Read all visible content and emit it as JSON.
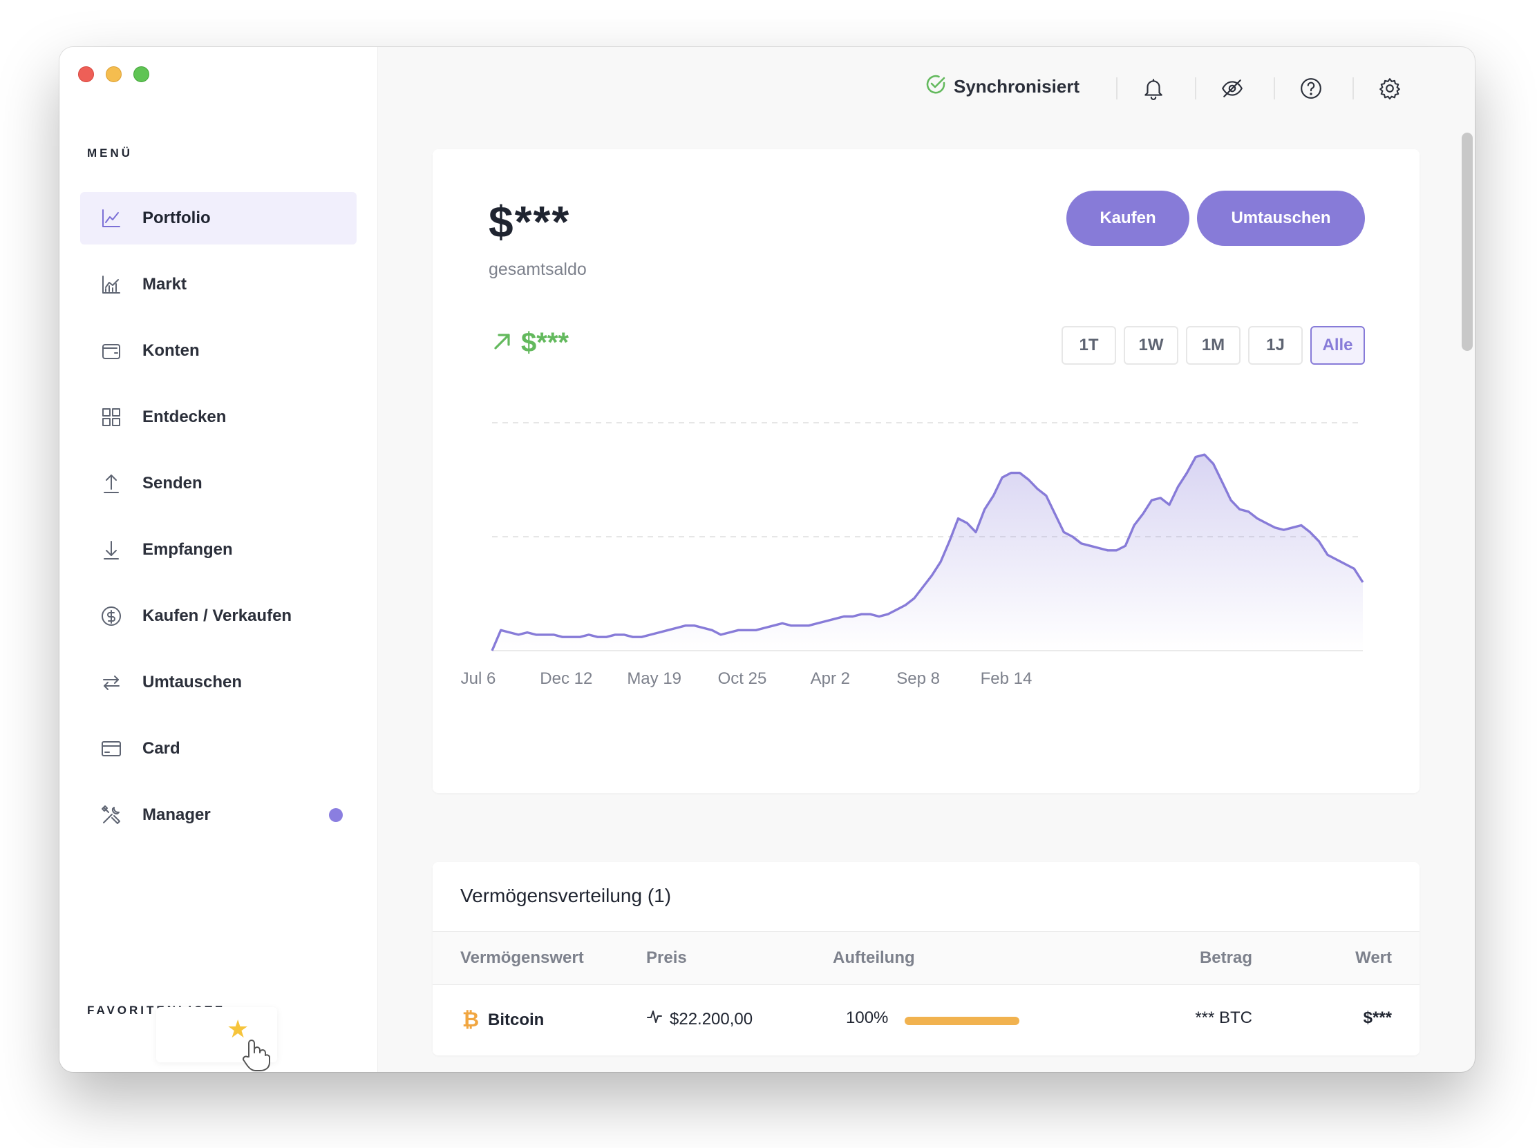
{
  "sidebar": {
    "menu_title": "MENÜ",
    "items": [
      {
        "label": "Portfolio",
        "icon": "chart-line-icon",
        "active": true
      },
      {
        "label": "Markt",
        "icon": "market-chart-icon"
      },
      {
        "label": "Konten",
        "icon": "wallet-icon"
      },
      {
        "label": "Entdecken",
        "icon": "grid-icon"
      },
      {
        "label": "Senden",
        "icon": "arrow-up-icon"
      },
      {
        "label": "Empfangen",
        "icon": "arrow-down-icon"
      },
      {
        "label": "Kaufen / Verkaufen",
        "icon": "dollar-circle-icon"
      },
      {
        "label": "Umtauschen",
        "icon": "swap-icon"
      },
      {
        "label": "Card",
        "icon": "card-icon"
      },
      {
        "label": "Manager",
        "icon": "tools-icon",
        "badge": true
      }
    ],
    "favorites_title": "FAVORITENLISTE"
  },
  "topbar": {
    "sync_label": "Synchronisiert"
  },
  "portfolio": {
    "balance": "$***",
    "balance_label": "gesamtsaldo",
    "buy_label": "Kaufen",
    "swap_label": "Umtauschen",
    "change": "$***",
    "ranges": [
      "1T",
      "1W",
      "1M",
      "1J",
      "Alle"
    ],
    "active_range": "Alle"
  },
  "chart_data": {
    "type": "area",
    "title": "",
    "xlabel": "",
    "ylabel": "",
    "x_tick_labels": [
      "Jul 6",
      "Dec 12",
      "May 19",
      "Oct 25",
      "Apr 2",
      "Sep 8",
      "Feb 14"
    ],
    "y_hidden": true,
    "ylim": [
      0,
      100
    ],
    "grid": "dashed horizontal",
    "series": [
      {
        "values": [
          0,
          9,
          8,
          7,
          8,
          7,
          7,
          7,
          6,
          6,
          6,
          7,
          6,
          6,
          7,
          7,
          6,
          6,
          7,
          8,
          9,
          10,
          11,
          11,
          10,
          9,
          7,
          8,
          9,
          9,
          9,
          10,
          11,
          12,
          11,
          11,
          11,
          12,
          13,
          14,
          15,
          15,
          16,
          16,
          15,
          16,
          18,
          20,
          23,
          28,
          33,
          39,
          48,
          58,
          56,
          52,
          62,
          68,
          76,
          78,
          78,
          75,
          71,
          68,
          60,
          52,
          50,
          47,
          46,
          45,
          44,
          44,
          46,
          55,
          60,
          66,
          67,
          64,
          72,
          78,
          85,
          86,
          82,
          74,
          66,
          62,
          61,
          58,
          56,
          54,
          53,
          54,
          55,
          52,
          48,
          42,
          40,
          38,
          36,
          30
        ],
        "color": "#877bd8"
      }
    ]
  },
  "allocation": {
    "title": "Vermögensverteilung (1)",
    "headers": {
      "asset": "Vermögenswert",
      "price": "Preis",
      "allocation": "Aufteilung",
      "amount": "Betrag",
      "value": "Wert"
    },
    "rows": [
      {
        "asset": "Bitcoin",
        "price": "$22.200,00",
        "allocation": "100%",
        "allocation_fraction": 1.0,
        "amount": "*** BTC",
        "value": "$***"
      }
    ]
  }
}
